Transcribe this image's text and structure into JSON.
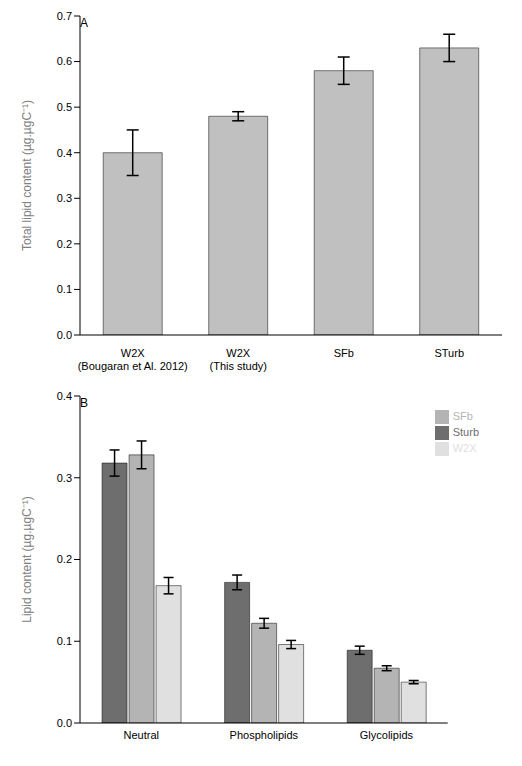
{
  "chart_data": [
    {
      "type": "bar",
      "title": "A",
      "ylabel": "Total lipid content (µg.µgC⁻¹)",
      "categories": [
        "W2X\n(Bougaran et Al. 2012)",
        "W2X\n(This study)",
        "SFb",
        "STurb"
      ],
      "values": [
        0.4,
        0.48,
        0.58,
        0.63
      ],
      "errors": [
        0.05,
        0.01,
        0.03,
        0.03
      ],
      "color": "#c0c0c0",
      "ylim": [
        0,
        0.7
      ],
      "yticks": [
        {
          "value": 0,
          "label": "0.0"
        },
        0.1,
        0.2,
        0.3,
        0.4,
        0.5,
        0.6,
        0.7
      ],
      "grid": false
    },
    {
      "type": "bar",
      "title": "B",
      "ylabel": "Lipid content (µg.µgC⁻¹)",
      "categories": [
        "Neutral",
        "Phospholipids",
        "Glycolipids"
      ],
      "series": [
        {
          "name": "Sturb",
          "color": "#6e6e6e",
          "values": [
            0.318,
            0.172,
            0.089
          ],
          "errors": [
            0.016,
            0.009,
            0.005
          ]
        },
        {
          "name": "SFb",
          "color": "#b4b4b4",
          "values": [
            0.328,
            0.122,
            0.067
          ],
          "errors": [
            0.017,
            0.006,
            0.003
          ]
        },
        {
          "name": "W2X",
          "color": "#e0e0e0",
          "values": [
            0.168,
            0.096,
            0.05
          ],
          "errors": [
            0.01,
            0.005,
            0.002
          ]
        }
      ],
      "ylim": [
        0,
        0.4
      ],
      "yticks": [
        {
          "value": 0,
          "label": "0.0"
        },
        0.1,
        0.2,
        0.3,
        0.4
      ],
      "grid": false,
      "legend": "upper right"
    }
  ]
}
